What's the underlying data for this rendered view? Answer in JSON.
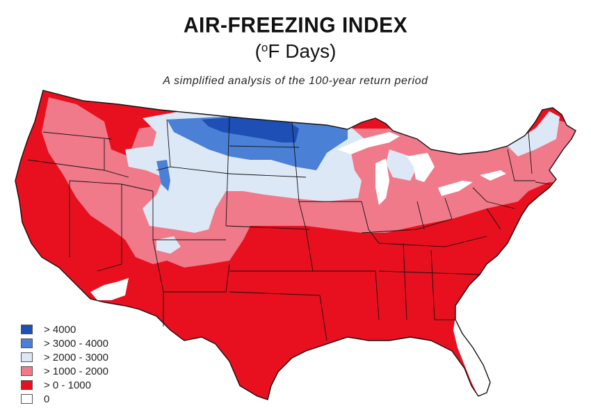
{
  "title": "AIR-FREEZING INDEX",
  "subtitle_prefix": "(",
  "subtitle_sup": "o",
  "subtitle_rest": "F Days)",
  "caption": "A simplified analysis of the 100-year return period",
  "colors": {
    "gt4000": "#1e4fb5",
    "3000_4000": "#4a80d6",
    "2000_3000": "#dde8f6",
    "1000_2000": "#f07a8a",
    "0_1000": "#e8101e",
    "zero": "#ffffff",
    "lakes": "#ffffff",
    "borders": "#111111"
  },
  "legend": [
    {
      "label": "> 4000",
      "color": "#1e4fb5"
    },
    {
      "label": "> 3000 - 4000",
      "color": "#4a80d6"
    },
    {
      "label": "> 2000 - 3000",
      "color": "#dde8f6"
    },
    {
      "label": "> 1000 - 2000",
      "color": "#f07a8a"
    },
    {
      "label": "> 0 - 1000",
      "color": "#e8101e"
    },
    {
      "label": "0",
      "color": "#ffffff"
    }
  ]
}
